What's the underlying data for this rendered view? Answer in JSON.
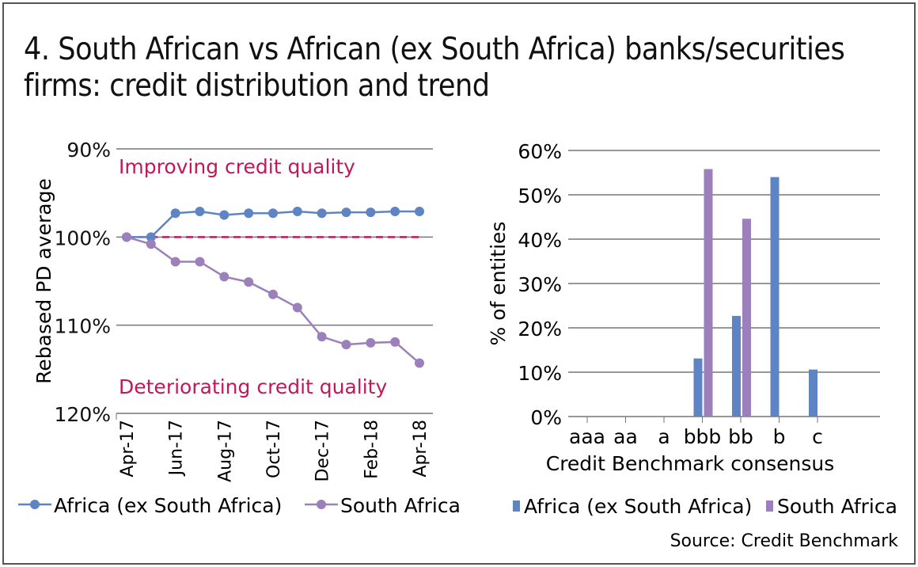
{
  "title": "4. South African vs African (ex South Africa) banks/securities firms: credit distribution and trend",
  "source": "Source: Credit Benchmark",
  "colors": {
    "africa": "#5f84c4",
    "south_africa": "#9c80bb",
    "annotation": "#c0185a",
    "grid": "#777777"
  },
  "chart_data": [
    {
      "type": "line",
      "ylabel": "Rebased PD average",
      "y_inverted": true,
      "ylim": [
        90,
        120
      ],
      "yticks": [
        "90%",
        "100%",
        "110%",
        "120%"
      ],
      "ytick_values": [
        90,
        100,
        110,
        120
      ],
      "x": [
        "Apr-17",
        "May-17",
        "Jun-17",
        "Jul-17",
        "Aug-17",
        "Sep-17",
        "Oct-17",
        "Nov-17",
        "Dec-17",
        "Jan-18",
        "Feb-18",
        "Mar-18",
        "Apr-18"
      ],
      "xticks": [
        "Apr-17",
        "Jun-17",
        "Aug-17",
        "Oct-17",
        "Dec-17",
        "Feb-18",
        "Apr-18"
      ],
      "reference_line": 100,
      "annotations": [
        "Improving credit quality",
        "Deteriorating credit quality"
      ],
      "legend_placement": "bottom",
      "series": [
        {
          "name": "Africa (ex South Africa)",
          "values": [
            100,
            100,
            97.3,
            97.1,
            97.5,
            97.3,
            97.3,
            97.1,
            97.3,
            97.2,
            97.2,
            97.1,
            97.1
          ]
        },
        {
          "name": "South Africa",
          "values": [
            100,
            100.8,
            102.8,
            102.8,
            104.5,
            105.1,
            106.5,
            108.0,
            111.3,
            112.2,
            112.0,
            111.9,
            114.3
          ]
        }
      ]
    },
    {
      "type": "bar",
      "xlabel": "Credit Benchmark consensus",
      "ylabel": "% of entities",
      "ylim": [
        0,
        60
      ],
      "yticks": [
        "0%",
        "10%",
        "20%",
        "30%",
        "40%",
        "50%",
        "60%"
      ],
      "categories": [
        "aaa",
        "aa",
        "a",
        "bbb",
        "bb",
        "b",
        "c"
      ],
      "legend_placement": "bottom",
      "series": [
        {
          "name": "Africa (ex South Africa)",
          "values": [
            0,
            0,
            0,
            13.1,
            22.7,
            54.0,
            10.6
          ]
        },
        {
          "name": "South Africa",
          "values": [
            0,
            0,
            0,
            55.8,
            44.6,
            0,
            0
          ]
        }
      ]
    }
  ]
}
